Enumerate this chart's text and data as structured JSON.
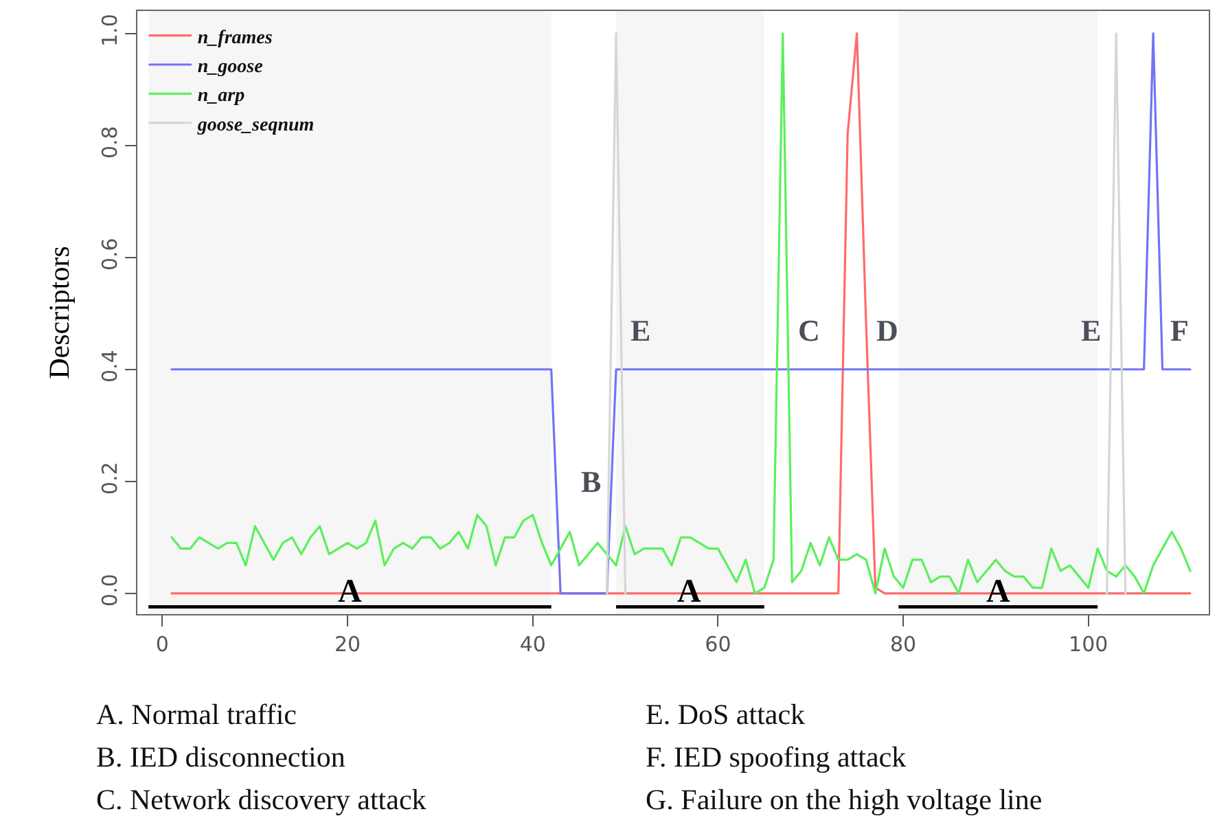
{
  "chart_data": {
    "type": "line",
    "ylabel": "Descriptors",
    "x": [
      1,
      2,
      3,
      4,
      5,
      6,
      7,
      8,
      9,
      10,
      11,
      12,
      13,
      14,
      15,
      16,
      17,
      18,
      19,
      20,
      21,
      22,
      23,
      24,
      25,
      26,
      27,
      28,
      29,
      30,
      31,
      32,
      33,
      34,
      35,
      36,
      37,
      38,
      39,
      40,
      41,
      42,
      43,
      44,
      45,
      46,
      47,
      48,
      49,
      50,
      51,
      52,
      53,
      54,
      55,
      56,
      57,
      58,
      59,
      60,
      61,
      62,
      63,
      64,
      65,
      66,
      67,
      68,
      69,
      70,
      71,
      72,
      73,
      74,
      75,
      76,
      77,
      78,
      79,
      80,
      81,
      82,
      83,
      84,
      85,
      86,
      87,
      88,
      89,
      90,
      91,
      92,
      93,
      94,
      95,
      96,
      97,
      98,
      99,
      100,
      101,
      102,
      103,
      104,
      105,
      106,
      107,
      108,
      109,
      110,
      111
    ],
    "series": [
      {
        "name": "n_frames",
        "color": "#ff6b6b",
        "values": [
          0,
          0,
          0,
          0,
          0,
          0,
          0,
          0,
          0,
          0,
          0,
          0,
          0,
          0,
          0,
          0,
          0,
          0,
          0,
          0,
          0,
          0,
          0,
          0,
          0,
          0,
          0,
          0,
          0,
          0,
          0,
          0,
          0,
          0,
          0,
          0,
          0,
          0,
          0,
          0,
          0,
          0,
          0,
          0,
          0,
          0,
          0,
          0,
          0,
          0,
          0,
          0,
          0,
          0,
          0,
          0,
          0,
          0,
          0,
          0,
          0,
          0,
          0,
          0,
          0,
          0,
          0,
          0,
          0,
          0,
          0,
          0,
          0,
          0.82,
          1.0,
          0.48,
          0.01,
          0,
          0,
          0,
          0,
          0,
          0,
          0,
          0,
          0,
          0,
          0,
          0,
          0,
          0,
          0,
          0,
          0,
          0,
          0,
          0,
          0,
          0,
          0,
          0,
          0,
          0,
          0,
          0,
          0,
          0,
          0,
          0,
          0,
          0
        ]
      },
      {
        "name": "n_goose",
        "color": "#7373f7",
        "values": [
          0.4,
          0.4,
          0.4,
          0.4,
          0.4,
          0.4,
          0.4,
          0.4,
          0.4,
          0.4,
          0.4,
          0.4,
          0.4,
          0.4,
          0.4,
          0.4,
          0.4,
          0.4,
          0.4,
          0.4,
          0.4,
          0.4,
          0.4,
          0.4,
          0.4,
          0.4,
          0.4,
          0.4,
          0.4,
          0.4,
          0.4,
          0.4,
          0.4,
          0.4,
          0.4,
          0.4,
          0.4,
          0.4,
          0.4,
          0.4,
          0.4,
          0.4,
          0,
          0,
          0,
          0,
          0,
          0,
          0.4,
          0.4,
          0.4,
          0.4,
          0.4,
          0.4,
          0.4,
          0.4,
          0.4,
          0.4,
          0.4,
          0.4,
          0.4,
          0.4,
          0.4,
          0.4,
          0.4,
          0.4,
          0.4,
          0.4,
          0.4,
          0.4,
          0.4,
          0.4,
          0.4,
          0.4,
          0.4,
          0.4,
          0.4,
          0.4,
          0.4,
          0.4,
          0.4,
          0.4,
          0.4,
          0.4,
          0.4,
          0.4,
          0.4,
          0.4,
          0.4,
          0.4,
          0.4,
          0.4,
          0.4,
          0.4,
          0.4,
          0.4,
          0.4,
          0.4,
          0.4,
          0.4,
          0.4,
          0.4,
          0.4,
          0.4,
          0.4,
          0.4,
          1.0,
          0.4,
          0.4,
          0.4,
          0.4
        ]
      },
      {
        "name": "n_arp",
        "color": "#5cef5c",
        "values": [
          0.1,
          0.08,
          0.08,
          0.1,
          0.09,
          0.08,
          0.09,
          0.09,
          0.05,
          0.12,
          0.09,
          0.06,
          0.09,
          0.1,
          0.07,
          0.1,
          0.12,
          0.07,
          0.08,
          0.09,
          0.08,
          0.09,
          0.13,
          0.05,
          0.08,
          0.09,
          0.08,
          0.1,
          0.1,
          0.08,
          0.09,
          0.11,
          0.08,
          0.14,
          0.12,
          0.05,
          0.1,
          0.1,
          0.13,
          0.14,
          0.09,
          0.05,
          0.08,
          0.11,
          0.05,
          0.07,
          0.09,
          0.07,
          0.05,
          0.12,
          0.07,
          0.08,
          0.08,
          0.08,
          0.05,
          0.1,
          0.1,
          0.09,
          0.08,
          0.08,
          0.05,
          0.02,
          0.06,
          0.0,
          0.01,
          0.06,
          1.0,
          0.02,
          0.04,
          0.09,
          0.05,
          0.1,
          0.06,
          0.06,
          0.07,
          0.06,
          0.0,
          0.08,
          0.03,
          0.01,
          0.06,
          0.06,
          0.02,
          0.03,
          0.03,
          0.0,
          0.06,
          0.02,
          0.04,
          0.06,
          0.04,
          0.03,
          0.03,
          0.01,
          0.01,
          0.08,
          0.04,
          0.05,
          0.03,
          0.01,
          0.08,
          0.04,
          0.03,
          0.05,
          0.03,
          0.0,
          0.05,
          0.08,
          0.11,
          0.08,
          0.04
        ]
      },
      {
        "name": "goose_seqnum",
        "color": "#d6d6d6",
        "values": [
          null,
          null,
          null,
          null,
          null,
          null,
          null,
          null,
          null,
          null,
          null,
          null,
          null,
          null,
          null,
          null,
          null,
          null,
          null,
          null,
          null,
          null,
          null,
          null,
          null,
          null,
          null,
          null,
          null,
          null,
          null,
          null,
          null,
          null,
          null,
          null,
          null,
          null,
          null,
          null,
          null,
          null,
          null,
          null,
          null,
          null,
          null,
          0,
          1,
          0,
          null,
          null,
          null,
          null,
          null,
          null,
          null,
          null,
          null,
          null,
          null,
          null,
          null,
          null,
          null,
          null,
          null,
          null,
          null,
          null,
          null,
          null,
          null,
          null,
          null,
          null,
          null,
          null,
          null,
          null,
          null,
          null,
          null,
          null,
          null,
          null,
          null,
          null,
          null,
          null,
          null,
          null,
          null,
          null,
          null,
          null,
          null,
          null,
          null,
          null,
          null,
          0,
          1,
          0,
          null,
          null,
          null,
          null,
          null,
          null,
          null
        ]
      }
    ],
    "xlim": [
      -2.7,
      113
    ],
    "ylim": [
      -0.037,
      1.04
    ],
    "xticks": [
      0,
      20,
      40,
      60,
      80,
      100
    ],
    "yticks": [
      {
        "value": 0,
        "label": "0.0"
      },
      {
        "value": 0.2,
        "label": "0.2"
      },
      {
        "value": 0.4,
        "label": "0.4"
      },
      {
        "value": 0.6,
        "label": "0.6"
      },
      {
        "value": 0.8,
        "label": "0.8"
      },
      {
        "value": 1,
        "label": "1.0"
      }
    ],
    "legend": "top left",
    "marker": "none",
    "line_style": "solid",
    "bands": [
      {
        "axis": "x",
        "from": -1.5,
        "to": 42,
        "label": "A",
        "color": "#000000"
      },
      {
        "axis": "x",
        "from": 49,
        "to": 65,
        "label": "A",
        "color": "#000000"
      },
      {
        "axis": "x",
        "from": 79.5,
        "to": 101,
        "label": "A",
        "color": "#000000"
      }
    ],
    "annotations": [
      {
        "text": "B",
        "x": 48.5,
        "y": 0.2
      },
      {
        "text": "E",
        "x": 49.53,
        "y": 0.47
      },
      {
        "text": "C",
        "x": 67.54,
        "y": 0.47
      },
      {
        "text": "D",
        "x": 76.02,
        "y": 0.47
      },
      {
        "text": "E",
        "x": 102.47,
        "y": 0.47
      },
      {
        "text": "F",
        "x": 107.88,
        "y": 0.47
      },
      "A. Normal traffic",
      "B. IED disconnection",
      "C. Network discovery attack",
      "E. DoS attack",
      "F. IED spoofing attack",
      "G. Failure on the high voltage line"
    ]
  }
}
